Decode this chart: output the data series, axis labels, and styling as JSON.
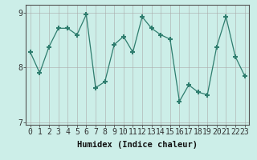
{
  "x": [
    0,
    1,
    2,
    3,
    4,
    5,
    6,
    7,
    8,
    9,
    10,
    11,
    12,
    13,
    14,
    15,
    16,
    17,
    18,
    19,
    20,
    21,
    22,
    23
  ],
  "y": [
    8.28,
    7.9,
    8.38,
    8.72,
    8.72,
    8.6,
    8.97,
    7.63,
    7.74,
    8.42,
    8.57,
    8.28,
    8.93,
    8.72,
    8.6,
    8.52,
    7.38,
    7.68,
    7.55,
    7.5,
    8.38,
    8.93,
    8.2,
    7.85
  ],
  "line_color": "#2e7d6e",
  "marker": "+",
  "bg_color": "#cceee8",
  "grid_color": "#aaaaaa",
  "xlabel": "Humidex (Indice chaleur)",
  "ylim": [
    6.95,
    9.15
  ],
  "yticks": [
    7,
    8,
    9
  ],
  "xlim": [
    -0.5,
    23.5
  ],
  "xticks": [
    0,
    1,
    2,
    3,
    4,
    5,
    6,
    7,
    8,
    9,
    10,
    11,
    12,
    13,
    14,
    15,
    16,
    17,
    18,
    19,
    20,
    21,
    22,
    23
  ],
  "xlabel_fontsize": 7.5,
  "tick_fontsize": 7
}
